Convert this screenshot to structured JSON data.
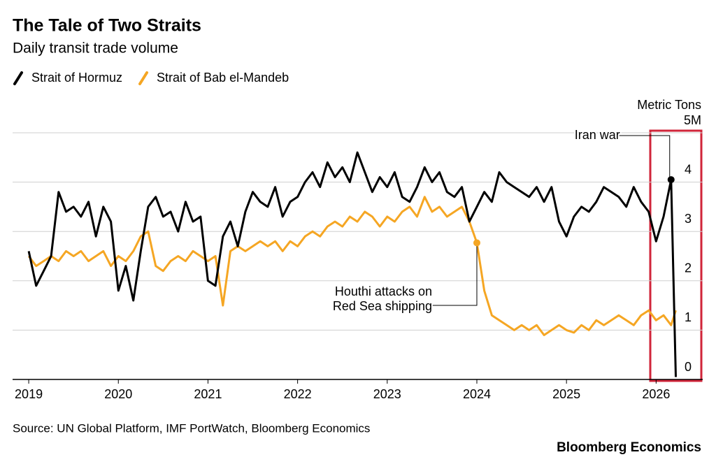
{
  "chart_data": {
    "type": "line",
    "title": "The Tale of Two Straits",
    "subtitle": "Daily transit trade volume",
    "y_unit": "Metric Tons",
    "source": "Source: UN Global Platform, IMF PortWatch, Bloomberg Economics",
    "credit": "Bloomberg Economics",
    "xlim": [
      2018.82,
      2026.52
    ],
    "xticks": [
      2019,
      2020,
      2021,
      2022,
      2023,
      2024,
      2025,
      2026
    ],
    "ylim": [
      0,
      5
    ],
    "yticks": [
      0,
      1,
      2,
      3,
      4,
      {
        "value": 5,
        "label": "5M"
      }
    ],
    "grid": true,
    "x": [
      2019,
      2019.083,
      2019.167,
      2019.25,
      2019.333,
      2019.417,
      2019.5,
      2019.583,
      2019.667,
      2019.75,
      2019.833,
      2019.917,
      2020,
      2020.083,
      2020.167,
      2020.25,
      2020.333,
      2020.417,
      2020.5,
      2020.583,
      2020.667,
      2020.75,
      2020.833,
      2020.917,
      2021,
      2021.083,
      2021.167,
      2021.25,
      2021.333,
      2021.417,
      2021.5,
      2021.583,
      2021.667,
      2021.75,
      2021.833,
      2021.917,
      2022,
      2022.083,
      2022.167,
      2022.25,
      2022.333,
      2022.417,
      2022.5,
      2022.583,
      2022.667,
      2022.75,
      2022.833,
      2022.917,
      2023,
      2023.083,
      2023.167,
      2023.25,
      2023.333,
      2023.417,
      2023.5,
      2023.583,
      2023.667,
      2023.75,
      2023.833,
      2023.917,
      2024,
      2024.083,
      2024.167,
      2024.25,
      2024.333,
      2024.417,
      2024.5,
      2024.583,
      2024.667,
      2024.75,
      2024.833,
      2024.917,
      2025,
      2025.083,
      2025.167,
      2025.25,
      2025.333,
      2025.417,
      2025.5,
      2025.583,
      2025.667,
      2025.75,
      2025.833,
      2025.917,
      2026,
      2026.083,
      2026.167,
      2026.22
    ],
    "series": [
      {
        "name": "Strait of Hormuz",
        "color": "#000000",
        "values": [
          2.6,
          1.9,
          2.2,
          2.5,
          3.8,
          3.4,
          3.5,
          3.3,
          3.6,
          2.9,
          3.5,
          3.2,
          1.8,
          2.3,
          1.6,
          2.6,
          3.5,
          3.7,
          3.3,
          3.4,
          3.0,
          3.6,
          3.2,
          3.3,
          2.0,
          1.9,
          2.9,
          3.2,
          2.7,
          3.4,
          3.8,
          3.6,
          3.5,
          3.9,
          3.3,
          3.6,
          3.7,
          4.0,
          4.2,
          3.9,
          4.4,
          4.1,
          4.3,
          4.0,
          4.6,
          4.2,
          3.8,
          4.1,
          3.9,
          4.2,
          3.7,
          3.6,
          3.9,
          4.3,
          4.0,
          4.2,
          3.8,
          3.7,
          3.9,
          3.2,
          3.5,
          3.8,
          3.6,
          4.2,
          4.0,
          3.9,
          3.8,
          3.7,
          3.9,
          3.6,
          3.9,
          3.2,
          2.9,
          3.3,
          3.5,
          3.4,
          3.6,
          3.9,
          3.8,
          3.7,
          3.5,
          3.9,
          3.6,
          3.4,
          2.8,
          3.3,
          4.05,
          0.05
        ]
      },
      {
        "name": "Strait of Bab el-Mandeb",
        "color": "#f5a623",
        "values": [
          2.5,
          2.3,
          2.4,
          2.5,
          2.4,
          2.6,
          2.5,
          2.6,
          2.4,
          2.5,
          2.6,
          2.3,
          2.5,
          2.4,
          2.6,
          2.9,
          3.0,
          2.3,
          2.2,
          2.4,
          2.5,
          2.4,
          2.6,
          2.5,
          2.4,
          2.5,
          1.5,
          2.6,
          2.7,
          2.6,
          2.7,
          2.8,
          2.7,
          2.8,
          2.6,
          2.8,
          2.7,
          2.9,
          3.0,
          2.9,
          3.1,
          3.2,
          3.1,
          3.3,
          3.2,
          3.4,
          3.3,
          3.1,
          3.3,
          3.2,
          3.4,
          3.5,
          3.3,
          3.7,
          3.4,
          3.5,
          3.3,
          3.4,
          3.5,
          3.2,
          2.77,
          1.8,
          1.3,
          1.2,
          1.1,
          1.0,
          1.1,
          1.0,
          1.1,
          0.9,
          1.0,
          1.1,
          1.0,
          0.95,
          1.1,
          1.0,
          1.2,
          1.1,
          1.2,
          1.3,
          1.2,
          1.1,
          1.3,
          1.4,
          1.2,
          1.3,
          1.1,
          1.4
        ]
      }
    ],
    "annotations": [
      {
        "lines": [
          "Iran war"
        ],
        "x": 2026.167,
        "y": 4.05
      },
      {
        "lines": [
          "Houthi attacks on",
          "Red Sea shipping"
        ],
        "x": 2024,
        "y": 2.77
      }
    ]
  }
}
